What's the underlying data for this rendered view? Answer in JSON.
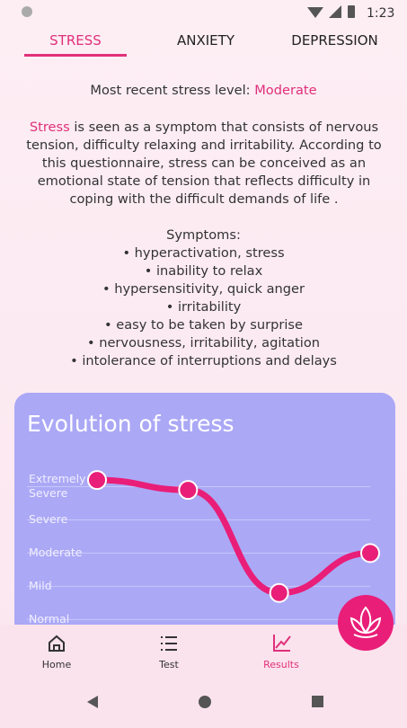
{
  "status_bar": {
    "time": "1:23"
  },
  "tabs": [
    "STRESS",
    "ANXIETY",
    "DEPRESSION"
  ],
  "recent": {
    "label": "Most recent stress level:",
    "level": "Moderate"
  },
  "description": {
    "term": "Stress",
    "text": "is seen as a symptom that consists of nervous tension, difficulty relaxing and irritability. According to this questionnaire, stress can be conceived as an emotional state of tension that reflects difficulty in coping with the difficult demands of life ."
  },
  "symptoms": {
    "title": "Symptoms:",
    "items": [
      "• hyperactivation, stress",
      "• inability to relax",
      "• hypersensitivity, quick anger",
      "• irritability",
      "• easy to be taken by surprise",
      "• nervousness, irritability, agitation",
      "• intolerance of interruptions and delays"
    ]
  },
  "chart_data": {
    "type": "line",
    "title": "Evolution of stress",
    "values": [
      4.2,
      3.9,
      0.8,
      2
    ],
    "color": "#e91e78",
    "ylim": [
      -0.1,
      4.5
    ],
    "yticks": [
      {
        "value": 0,
        "label": "Normal"
      },
      {
        "value": 1,
        "label": "Mild"
      },
      {
        "value": 2,
        "label": "Moderate"
      },
      {
        "value": 3,
        "label": "Severe"
      },
      {
        "value": 4,
        "label": "Extremely Severe"
      }
    ],
    "grid": true
  },
  "nav": [
    "Home",
    "Test",
    "Results"
  ]
}
